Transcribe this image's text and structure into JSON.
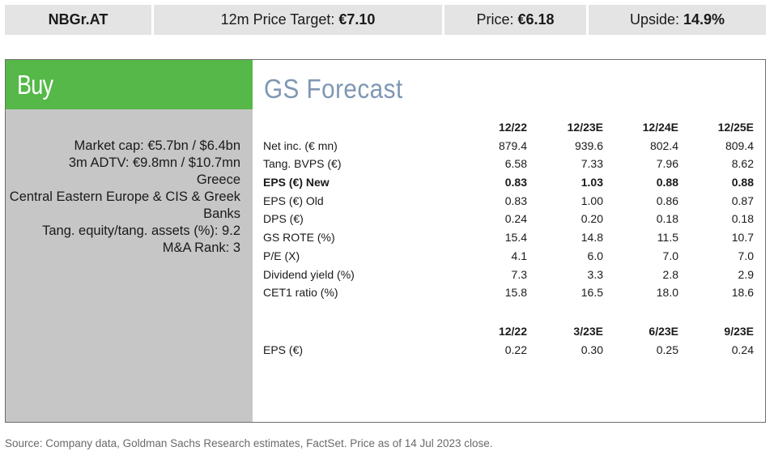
{
  "header": {
    "ticker": "NBGr.AT",
    "target_label": "12m Price Target: ",
    "target_value": "€7.10",
    "price_label": "Price: ",
    "price_value": "€6.18",
    "upside_label": "Upside: ",
    "upside_value": "14.9%"
  },
  "rating": "Buy",
  "stats": [
    "Market cap: €5.7bn / $6.4bn",
    "3m ADTV: €9.8mn / $10.7mn",
    "Greece",
    "Central Eastern Europe & CIS & Greek Banks",
    "Tang. equity/tang. assets (%): 9.2",
    "M&A Rank: 3"
  ],
  "forecast_title": "GS Forecast",
  "annual": {
    "columns": [
      "12/22",
      "12/23E",
      "12/24E",
      "12/25E"
    ],
    "rows": [
      {
        "label": "Net inc. (€ mn)",
        "values": [
          "879.4",
          "939.6",
          "802.4",
          "809.4"
        ]
      },
      {
        "label": "Tang. BVPS (€)",
        "values": [
          "6.58",
          "7.33",
          "7.96",
          "8.62"
        ]
      },
      {
        "label": "EPS (€) New",
        "values": [
          "0.83",
          "1.03",
          "0.88",
          "0.88"
        ],
        "bold": true
      },
      {
        "label": "EPS (€) Old",
        "values": [
          "0.83",
          "1.00",
          "0.86",
          "0.87"
        ]
      },
      {
        "label": "DPS (€)",
        "values": [
          "0.24",
          "0.20",
          "0.18",
          "0.18"
        ]
      },
      {
        "label": "GS ROTE (%)",
        "values": [
          "15.4",
          "14.8",
          "11.5",
          "10.7"
        ]
      },
      {
        "label": "P/E (X)",
        "values": [
          "4.1",
          "6.0",
          "7.0",
          "7.0"
        ]
      },
      {
        "label": "Dividend yield (%)",
        "values": [
          "7.3",
          "3.3",
          "2.8",
          "2.9"
        ]
      },
      {
        "label": "CET1 ratio (%)",
        "values": [
          "15.8",
          "16.5",
          "18.0",
          "18.6"
        ]
      }
    ]
  },
  "quarterly": {
    "columns": [
      "12/22",
      "3/23E",
      "6/23E",
      "9/23E"
    ],
    "rows": [
      {
        "label": "EPS (€)",
        "values": [
          "0.22",
          "0.30",
          "0.25",
          "0.24"
        ]
      }
    ]
  },
  "source": "Source: Company data, Goldman Sachs Research estimates, FactSet. Price as of 14 Jul 2023 close."
}
